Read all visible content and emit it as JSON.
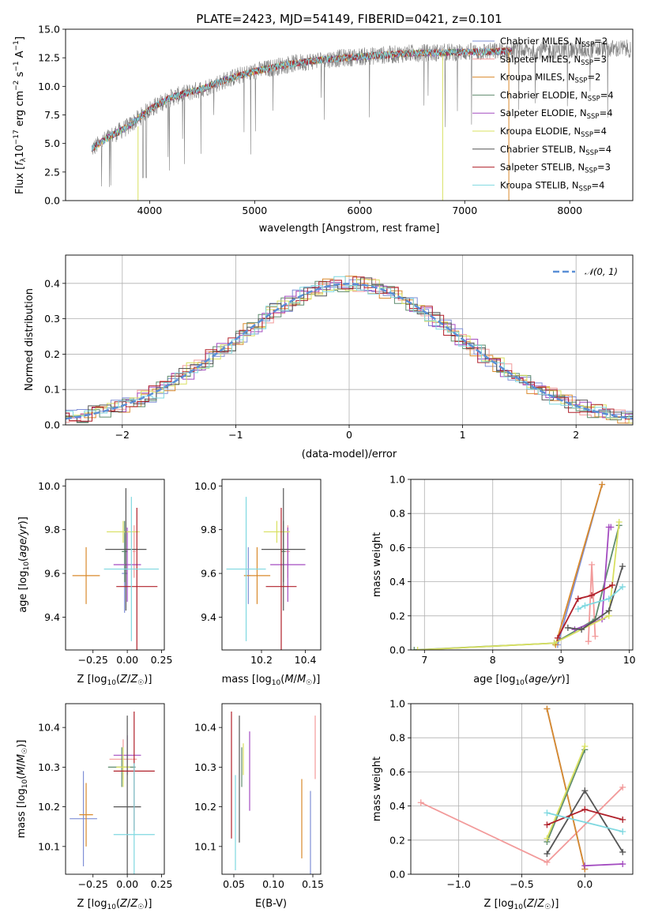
{
  "figure": {
    "title": "PLATE=2423, MJD=54149, FIBERID=0421, z=0.101"
  },
  "models": [
    {
      "name": "Chabrier MILES",
      "nssp": "2",
      "color": "#7f8fd6"
    },
    {
      "name": "Salpeter MILES",
      "nssp": "3",
      "color": "#f29a9a"
    },
    {
      "name": "Kroupa MILES",
      "nssp": "2",
      "color": "#d98a2c"
    },
    {
      "name": "Chabrier ELODIE",
      "nssp": "4",
      "color": "#5f8c6e"
    },
    {
      "name": "Salpeter ELODIE",
      "nssp": "4",
      "color": "#a34bc0"
    },
    {
      "name": "Kroupa ELODIE",
      "nssp": "4",
      "color": "#d8e060"
    },
    {
      "name": "Chabrier STELIB",
      "nssp": "4",
      "color": "#555555"
    },
    {
      "name": "Salpeter STELIB",
      "nssp": "3",
      "color": "#b0202a"
    },
    {
      "name": "Kroupa STELIB",
      "nssp": "4",
      "color": "#7fd8e0"
    }
  ],
  "chart_data": [
    {
      "id": "spectrum",
      "type": "line",
      "xlabel": "wavelength [Angstrom, rest frame]",
      "ylabel": "Flux [f_λ 10^-17 erg cm^-2 s^-1 A^-1]",
      "xlim": [
        3200,
        8600
      ],
      "ylim": [
        0,
        15
      ],
      "xticks": [
        4000,
        5000,
        6000,
        7000,
        8000
      ],
      "yticks": [
        0.0,
        2.5,
        5.0,
        7.5,
        10.0,
        12.5,
        15.0
      ],
      "legend_loc": "right",
      "data_color": "#808080",
      "continuum": {
        "x": [
          3450,
          3600,
          3800,
          4000,
          4200,
          4500,
          4800,
          5000,
          5300,
          5600,
          6000,
          6500,
          7000,
          7500,
          8000,
          8500
        ],
        "y": [
          4.5,
          5.5,
          6.5,
          8.0,
          9.0,
          9.8,
          10.8,
          11.3,
          11.9,
          12.3,
          12.6,
          12.9,
          13.0,
          13.1,
          13.2,
          13.3
        ]
      },
      "model_range": [
        3450,
        7450
      ]
    },
    {
      "id": "residuals",
      "type": "step",
      "xlabel": "(data-model)/error",
      "ylabel": "Normed distribution",
      "xlim": [
        -2.5,
        2.5
      ],
      "ylim": [
        0,
        0.48
      ],
      "xticks": [
        -2,
        -1,
        0,
        1,
        2
      ],
      "yticks": [
        0.0,
        0.1,
        0.2,
        0.3,
        0.4
      ],
      "legend": "𝒩(0, 1)",
      "legend_loc": "top-right",
      "gaussian_color": "#5b8fd6"
    },
    {
      "id": "z-age",
      "type": "errorbar",
      "xlabel": "Z [log10(Z/Z☉)]",
      "ylabel": "age [log10(age/yr)]",
      "xlim": [
        -0.45,
        0.27
      ],
      "ylim": [
        9.25,
        10.03
      ],
      "xticks": [
        -0.25,
        0.0,
        0.25
      ],
      "yticks": [
        9.4,
        9.6,
        9.8,
        10.0
      ],
      "points": [
        {
          "model": 0,
          "x": -0.02,
          "xerr": 0.02,
          "y": 9.6,
          "yerr": 0.18
        },
        {
          "model": 1,
          "x": 0.05,
          "xerr": 0.01,
          "y": 9.7,
          "yerr": 0.12
        },
        {
          "model": 2,
          "x": -0.3,
          "xerr": 0.1,
          "y": 9.59,
          "yerr": 0.13
        },
        {
          "model": 3,
          "x": -0.02,
          "xerr": 0.02,
          "y": 9.7,
          "yerr": 0.14
        },
        {
          "model": 4,
          "x": 0.0,
          "xerr": 0.1,
          "y": 9.64,
          "yerr": 0.17
        },
        {
          "model": 5,
          "x": -0.03,
          "xerr": 0.12,
          "y": 9.79,
          "yerr": 0.05
        },
        {
          "model": 6,
          "x": -0.01,
          "xerr": 0.15,
          "y": 9.71,
          "yerr": 0.28
        },
        {
          "model": 7,
          "x": 0.07,
          "xerr": 0.15,
          "y": 9.54,
          "yerr": 0.36
        },
        {
          "model": 8,
          "x": 0.03,
          "xerr": 0.2,
          "y": 9.62,
          "yerr": 0.33
        }
      ]
    },
    {
      "id": "mass-age",
      "type": "errorbar",
      "xlabel": "mass [log10(M/M☉)]",
      "ylabel": "",
      "xlim": [
        10.02,
        10.47
      ],
      "ylim": [
        9.25,
        10.03
      ],
      "xticks": [
        10.2,
        10.4
      ],
      "yticks": [
        9.4,
        9.6,
        9.8,
        10.0
      ],
      "points": [
        {
          "model": 0,
          "x": 10.14,
          "xerr": 0.01,
          "y": 9.59,
          "yerr": 0.13
        },
        {
          "model": 1,
          "x": 10.32,
          "xerr": 0.01,
          "y": 9.7,
          "yerr": 0.12
        },
        {
          "model": 2,
          "x": 10.18,
          "xerr": 0.06,
          "y": 9.59,
          "yerr": 0.13
        },
        {
          "model": 3,
          "x": 10.3,
          "xerr": 0.01,
          "y": 9.7,
          "yerr": 0.14
        },
        {
          "model": 4,
          "x": 10.32,
          "xerr": 0.08,
          "y": 9.64,
          "yerr": 0.17
        },
        {
          "model": 5,
          "x": 10.27,
          "xerr": 0.06,
          "y": 9.79,
          "yerr": 0.05
        },
        {
          "model": 6,
          "x": 10.3,
          "xerr": 0.1,
          "y": 9.71,
          "yerr": 0.28
        },
        {
          "model": 7,
          "x": 10.29,
          "xerr": 0.07,
          "y": 9.54,
          "yerr": 0.36
        },
        {
          "model": 8,
          "x": 10.13,
          "xerr": 0.09,
          "y": 9.62,
          "yerr": 0.33
        }
      ]
    },
    {
      "id": "age-weight",
      "type": "line",
      "xlabel": "age [log10(age/yr)]",
      "ylabel": "mass weight",
      "xlim": [
        6.8,
        10.05
      ],
      "ylim": [
        0,
        1.0
      ],
      "xticks": [
        7,
        8,
        9,
        10
      ],
      "yticks": [
        0.0,
        0.2,
        0.4,
        0.6,
        0.8,
        1.0
      ],
      "series": [
        {
          "model": 0,
          "x": [
            8.95,
            9.6
          ],
          "y": [
            0.03,
            0.97
          ]
        },
        {
          "model": 1,
          "x": [
            9.4,
            9.45,
            9.5
          ],
          "y": [
            0.05,
            0.5,
            0.08
          ]
        },
        {
          "model": 2,
          "x": [
            8.92,
            9.6
          ],
          "y": [
            0.03,
            0.97
          ]
        },
        {
          "model": 3,
          "x": [
            6.85,
            8.9,
            9.5,
            9.85
          ],
          "y": [
            0.0,
            0.04,
            0.18,
            0.73
          ]
        },
        {
          "model": 4,
          "x": [
            9.2,
            9.6,
            9.7,
            9.73
          ],
          "y": [
            0.12,
            0.18,
            0.72,
            0.72
          ]
        },
        {
          "model": 5,
          "x": [
            6.9,
            8.9,
            9.7,
            9.85
          ],
          "y": [
            0.0,
            0.04,
            0.2,
            0.75
          ]
        },
        {
          "model": 6,
          "x": [
            9.1,
            9.3,
            9.7,
            9.9
          ],
          "y": [
            0.13,
            0.12,
            0.23,
            0.49
          ]
        },
        {
          "model": 7,
          "x": [
            8.95,
            9.25,
            9.45,
            9.75
          ],
          "y": [
            0.07,
            0.3,
            0.32,
            0.38
          ]
        },
        {
          "model": 8,
          "x": [
            9.25,
            9.35,
            9.7,
            9.9
          ],
          "y": [
            0.24,
            0.26,
            0.3,
            0.37
          ]
        }
      ]
    },
    {
      "id": "z-mass",
      "type": "errorbar",
      "xlabel": "Z [log10(Z/Z☉)]",
      "ylabel": "mass [log10(M/M☉)]",
      "xlim": [
        -0.45,
        0.27
      ],
      "ylim": [
        10.03,
        10.46
      ],
      "xticks": [
        -0.25,
        0.0,
        0.25
      ],
      "yticks": [
        10.1,
        10.2,
        10.3,
        10.4
      ],
      "points": [
        {
          "model": 0,
          "x": -0.32,
          "xerr": 0.1,
          "y": 10.17,
          "yerr": 0.12
        },
        {
          "model": 1,
          "x": -0.03,
          "xerr": 0.1,
          "y": 10.32,
          "yerr": 0.05
        },
        {
          "model": 2,
          "x": -0.3,
          "xerr": 0.05,
          "y": 10.18,
          "yerr": 0.08
        },
        {
          "model": 3,
          "x": -0.04,
          "xerr": 0.1,
          "y": 10.3,
          "yerr": 0.05
        },
        {
          "model": 4,
          "x": 0.0,
          "xerr": 0.1,
          "y": 10.33,
          "yerr": 0.05
        },
        {
          "model": 5,
          "x": -0.03,
          "xerr": 0.05,
          "y": 10.3,
          "yerr": 0.05
        },
        {
          "model": 6,
          "x": 0.0,
          "xerr": 0.1,
          "y": 10.2,
          "yerr": 0.23
        },
        {
          "model": 7,
          "x": 0.05,
          "xerr": 0.15,
          "y": 10.29,
          "yerr": 0.15
        },
        {
          "model": 8,
          "x": 0.05,
          "xerr": 0.15,
          "y": 10.13,
          "yerr": 0.18
        }
      ]
    },
    {
      "id": "ebv-mass",
      "type": "errorbar",
      "xlabel": "E(B-V)",
      "ylabel": "",
      "xlim": [
        0.035,
        0.16
      ],
      "ylim": [
        10.03,
        10.46
      ],
      "xticks": [
        0.05,
        0.1,
        0.15
      ],
      "yticks": [
        10.1,
        10.2,
        10.3,
        10.4
      ],
      "points": [
        {
          "model": 0,
          "x": 0.147,
          "xerr": 0,
          "y": 10.12,
          "yerr": 0.12
        },
        {
          "model": 1,
          "x": 0.153,
          "xerr": 0,
          "y": 10.35,
          "yerr": 0.08
        },
        {
          "model": 2,
          "x": 0.136,
          "xerr": 0,
          "y": 10.17,
          "yerr": 0.1
        },
        {
          "model": 3,
          "x": 0.06,
          "xerr": 0,
          "y": 10.3,
          "yerr": 0.05
        },
        {
          "model": 4,
          "x": 0.07,
          "xerr": 0,
          "y": 10.29,
          "yerr": 0.1
        },
        {
          "model": 5,
          "x": 0.062,
          "xerr": 0,
          "y": 10.32,
          "yerr": 0.04
        },
        {
          "model": 6,
          "x": 0.057,
          "xerr": 0,
          "y": 10.27,
          "yerr": 0.16
        },
        {
          "model": 7,
          "x": 0.047,
          "xerr": 0,
          "y": 10.28,
          "yerr": 0.16
        },
        {
          "model": 8,
          "x": 0.052,
          "xerr": 0,
          "y": 10.16,
          "yerr": 0.12
        }
      ]
    },
    {
      "id": "z-weight",
      "type": "line",
      "xlabel": "Z [log10(Z/Z☉)]",
      "ylabel": "mass weight",
      "xlim": [
        -1.38,
        0.38
      ],
      "ylim": [
        0,
        1.0
      ],
      "xticks": [
        -1.0,
        -0.5,
        0.0
      ],
      "yticks": [
        0.0,
        0.2,
        0.4,
        0.6,
        0.8,
        1.0
      ],
      "series": [
        {
          "model": 0,
          "x": [
            -0.3,
            0.0
          ],
          "y": [
            0.97,
            0.03
          ]
        },
        {
          "model": 1,
          "x": [
            -1.3,
            -0.3,
            0.3
          ],
          "y": [
            0.42,
            0.07,
            0.51
          ]
        },
        {
          "model": 2,
          "x": [
            -0.3,
            0.0
          ],
          "y": [
            0.97,
            0.03
          ]
        },
        {
          "model": 3,
          "x": [
            -0.3,
            0.0
          ],
          "y": [
            0.19,
            0.73
          ]
        },
        {
          "model": 4,
          "x": [
            0.0,
            0.3
          ],
          "y": [
            0.05,
            0.06
          ]
        },
        {
          "model": 5,
          "x": [
            -0.3,
            0.0
          ],
          "y": [
            0.21,
            0.75
          ]
        },
        {
          "model": 6,
          "x": [
            -0.3,
            0.0,
            0.3
          ],
          "y": [
            0.12,
            0.49,
            0.13
          ]
        },
        {
          "model": 7,
          "x": [
            -0.3,
            0.0,
            0.3
          ],
          "y": [
            0.29,
            0.38,
            0.32
          ]
        },
        {
          "model": 8,
          "x": [
            -0.3,
            0.3
          ],
          "y": [
            0.36,
            0.25
          ]
        }
      ]
    }
  ]
}
